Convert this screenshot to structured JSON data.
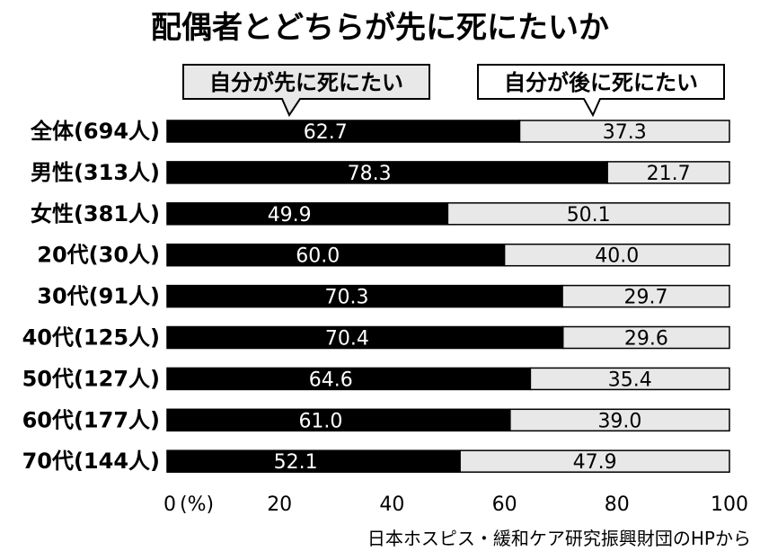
{
  "chart_data": {
    "type": "bar",
    "stacked": true,
    "orientation": "horizontal",
    "title": "配偶者とどちらが先に死にたいか",
    "categories": [
      "全体(694人)",
      "男性(313人)",
      "女性(381人)",
      "20代(30人)",
      "30代(91人)",
      "40代(125人)",
      "50代(127人)",
      "60代(177人)",
      "70代(144人)"
    ],
    "series": [
      {
        "name": "自分が先に死にたい",
        "color": "#000000",
        "values": [
          62.7,
          78.3,
          49.9,
          60.0,
          70.3,
          70.4,
          64.6,
          61.0,
          52.1
        ]
      },
      {
        "name": "自分が後に死にたい",
        "color": "#e8e8e8",
        "values": [
          37.3,
          21.7,
          50.1,
          40.0,
          29.7,
          29.6,
          35.4,
          39.0,
          47.9
        ]
      }
    ],
    "xlim": [
      0,
      100
    ],
    "xticks": [
      "0",
      "20",
      "40",
      "60",
      "80",
      "100"
    ],
    "xunit": "(%)",
    "source": "日本ホスピス・緩和ケア研究振興財団のHPから"
  }
}
